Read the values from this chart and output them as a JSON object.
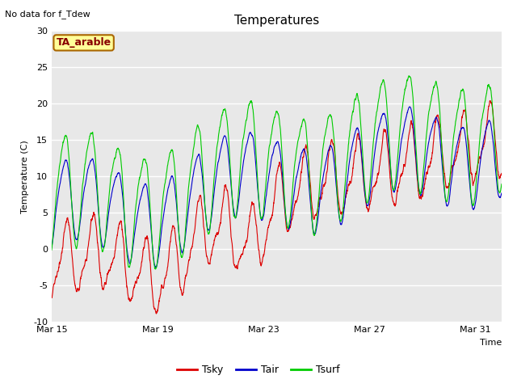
{
  "title": "Temperatures",
  "subtitle": "No data for f_Tdew",
  "xlabel": "Time",
  "ylabel": "Temperature (C)",
  "ylim": [
    -10,
    30
  ],
  "xlim_days": [
    0,
    17
  ],
  "x_ticks_labels": [
    "Mar 15",
    "Mar 19",
    "Mar 23",
    "Mar 27",
    "Mar 31"
  ],
  "x_ticks_pos": [
    0,
    4,
    8,
    12,
    16
  ],
  "y_ticks": [
    -10,
    -5,
    0,
    5,
    10,
    15,
    20,
    25,
    30
  ],
  "plot_bg_color": "#e8e8e8",
  "fig_bg_color": "#ffffff",
  "grid_color": "#ffffff",
  "tsky_color": "#dd0000",
  "tair_color": "#0000cc",
  "tsurf_color": "#00cc00",
  "legend_label_tsky": "Tsky",
  "legend_label_tair": "Tair",
  "legend_label_tsurf": "Tsurf",
  "box_label": "TA_arable",
  "box_bg": "#ffff99",
  "box_border": "#aa6600"
}
